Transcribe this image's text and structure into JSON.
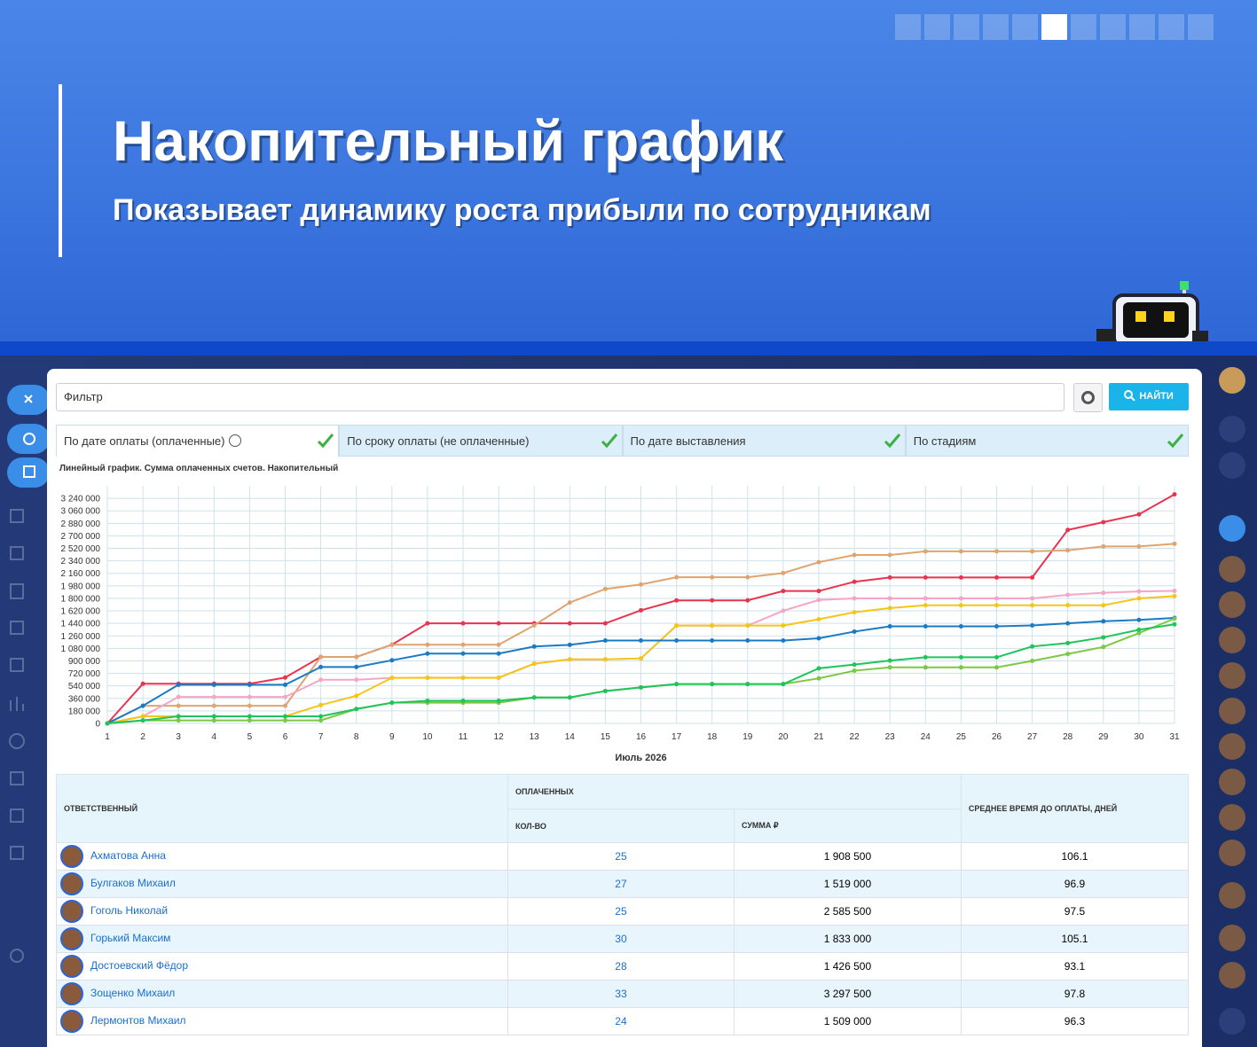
{
  "banner": {
    "title": "Накопительный график",
    "subtitle": "Показывает динамику роста прибыли по сотрудникам"
  },
  "filter": {
    "placeholder": "Фильтр",
    "button": "НАЙТИ"
  },
  "tabs": [
    "По дате оплаты (оплаченные)",
    "По сроку оплаты (не оплаченные)",
    "По дате выставления",
    "По стадиям"
  ],
  "chart_data": {
    "type": "line",
    "title": "Линейный график. Сумма оплаченных счетов. Накопительный",
    "x_label": "Июль 2026",
    "x": [
      1,
      2,
      3,
      4,
      5,
      6,
      7,
      8,
      9,
      10,
      11,
      12,
      13,
      14,
      15,
      16,
      17,
      18,
      19,
      20,
      21,
      22,
      23,
      24,
      25,
      26,
      27,
      28,
      29,
      30,
      31
    ],
    "xlim": [
      1,
      31
    ],
    "ylim": [
      0,
      3420000
    ],
    "grid": true,
    "yticks": [
      0,
      {
        "value": 180000,
        "label": "180 000"
      },
      {
        "value": 360000,
        "label": "360 000"
      },
      {
        "value": 540000,
        "label": "540 000"
      },
      {
        "value": 720000,
        "label": "720 000"
      },
      {
        "value": 900000,
        "label": "900 000"
      },
      {
        "value": 1080000,
        "label": "1 080 000"
      },
      {
        "value": 1260000,
        "label": "1 260 000"
      },
      {
        "value": 1440000,
        "label": "1 440 000"
      },
      {
        "value": 1620000,
        "label": "1 620 000"
      },
      {
        "value": 1800000,
        "label": "1 800 000"
      },
      {
        "value": 1980000,
        "label": "1 980 000"
      },
      {
        "value": 2160000,
        "label": "2 160 000"
      },
      {
        "value": 2340000,
        "label": "2 340 000"
      },
      {
        "value": 2520000,
        "label": "2 520 000"
      },
      {
        "value": 2700000,
        "label": "2 700 000"
      },
      {
        "value": 2880000,
        "label": "2 880 000"
      },
      {
        "value": 3060000,
        "label": "3 060 000"
      },
      {
        "value": 3240000,
        "label": "3 240 000"
      }
    ],
    "series": [
      {
        "name": "Зощенко Михаил",
        "color": "#e8344f",
        "values": [
          0,
          570500,
          570500,
          570500,
          570500,
          660500,
          956500,
          956500,
          1133000,
          1440000,
          1440000,
          1440000,
          1440000,
          1440000,
          1440000,
          1628000,
          1770500,
          1770500,
          1770500,
          1905500,
          1905500,
          2039000,
          2101000,
          2101000,
          2101000,
          2101000,
          2101000,
          2785500,
          2897000,
          3009000,
          3297500
        ]
      },
      {
        "name": "Гоголь Николай",
        "color": "#e0a46f",
        "values": [
          0,
          253500,
          253500,
          253500,
          253500,
          253500,
          956500,
          956500,
          1133000,
          1133000,
          1133000,
          1133000,
          1412000,
          1740500,
          1935500,
          2000500,
          2104500,
          2104500,
          2104500,
          2164500,
          2320500,
          2424500,
          2424500,
          2476500,
          2476500,
          2476500,
          2476500,
          2491000,
          2547000,
          2547000,
          2585500
        ]
      },
      {
        "name": "Ахматова Анна",
        "color": "#f5a6c6",
        "values": [
          0,
          102000,
          381500,
          381500,
          381500,
          381500,
          628500,
          628500,
          656000,
          659500,
          659500,
          659500,
          859500,
          921500,
          921500,
          935500,
          1408000,
          1408000,
          1408000,
          1622000,
          1777000,
          1800000,
          1800000,
          1800000,
          1800000,
          1800000,
          1800000,
          1850000,
          1880000,
          1900000,
          1908500
        ]
      },
      {
        "name": "Горький Максим",
        "color": "#f5c518",
        "values": [
          0,
          102000,
          102000,
          102000,
          102000,
          102000,
          264000,
          397500,
          656000,
          656000,
          656000,
          656000,
          859500,
          921500,
          921500,
          935500,
          1408000,
          1408000,
          1408000,
          1408000,
          1500000,
          1600000,
          1660000,
          1700000,
          1700000,
          1700000,
          1700000,
          1700000,
          1700000,
          1800000,
          1833000
        ]
      },
      {
        "name": "Булгаков Михаил",
        "color": "#1a7bc4",
        "values": [
          0,
          253500,
          556000,
          556000,
          556000,
          556000,
          812000,
          812000,
          908500,
          1005000,
          1005000,
          1005000,
          1106500,
          1131500,
          1193000,
          1193000,
          1193000,
          1193000,
          1193000,
          1193000,
          1225000,
          1321500,
          1397000,
          1397000,
          1397000,
          1397000,
          1410000,
          1440000,
          1470000,
          1490000,
          1519000
        ]
      },
      {
        "name": "Лермонтов Михаил",
        "color": "#7bc943",
        "values": [
          0,
          43000,
          43000,
          43000,
          43000,
          43000,
          43000,
          207500,
          297500,
          297500,
          297500,
          297500,
          373000,
          373000,
          466500,
          518000,
          566000,
          566000,
          566000,
          566000,
          648500,
          758500,
          806500,
          806500,
          806500,
          806500,
          900000,
          1000000,
          1100000,
          1300000,
          1509000
        ]
      },
      {
        "name": "Достоевский Фёдор",
        "color": "#1fc45a",
        "values": [
          0,
          43000,
          102000,
          102000,
          102000,
          102000,
          102000,
          207500,
          297500,
          325000,
          325000,
          325000,
          373000,
          373000,
          466500,
          518000,
          566000,
          566000,
          566000,
          566000,
          793500,
          846500,
          904000,
          952000,
          952000,
          952000,
          1108000,
          1156000,
          1238500,
          1347500,
          1426500
        ]
      }
    ]
  },
  "table": {
    "headers": {
      "owner": "ОТВЕТСТВЕННЫЙ",
      "group": "ОПЛАЧЕННЫХ",
      "count": "КОЛ-ВО",
      "sum": "СУММА ₽",
      "avg": "СРЕДНЕЕ ВРЕМЯ ДО ОПЛАТЫ, ДНЕЙ"
    },
    "rows": [
      [
        "Ахматова Анна",
        25,
        "1 908 500",
        106.1
      ],
      [
        "Булгаков Михаил",
        27,
        "1 519 000",
        96.9
      ],
      [
        "Гоголь Николай",
        25,
        "2 585 500",
        97.5
      ],
      [
        "Горький Максим",
        30,
        "1 833 000",
        105.1
      ],
      [
        "Достоевский Фёдор",
        28,
        "1 426 500",
        93.1
      ],
      [
        "Зощенко Михаил",
        33,
        "3 297 500",
        97.8
      ],
      [
        "Лермонтов Михаил",
        24,
        "1 509 000",
        96.3
      ]
    ]
  }
}
